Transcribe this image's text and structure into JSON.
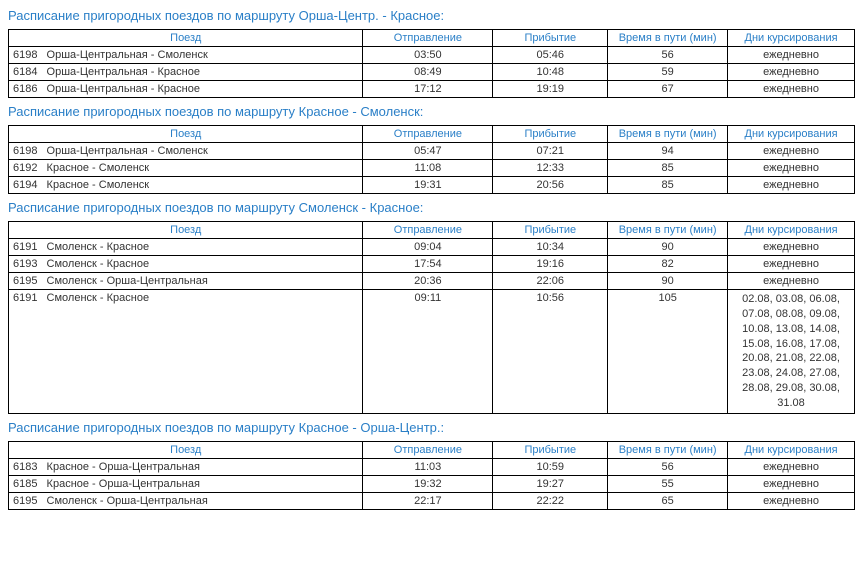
{
  "columns": {
    "train": "Поезд",
    "dep": "Отправление",
    "arr": "Прибытие",
    "dur": "Время в пути (мин)",
    "days": "Дни курсирования"
  },
  "sections": [
    {
      "title": "Расписание пригородных поездов по маршруту Орша-Центр. - Красное:",
      "rows": [
        {
          "num": "6198",
          "name": "Орша-Центральная - Смоленск",
          "dep": "03:50",
          "arr": "05:46",
          "dur": "56",
          "days": "ежедневно"
        },
        {
          "num": "6184",
          "name": "Орша-Центральная - Красное",
          "dep": "08:49",
          "arr": "10:48",
          "dur": "59",
          "days": "ежедневно"
        },
        {
          "num": "6186",
          "name": "Орша-Центральная - Красное",
          "dep": "17:12",
          "arr": "19:19",
          "dur": "67",
          "days": "ежедневно"
        }
      ]
    },
    {
      "title": "Расписание пригородных поездов по маршруту Красное - Смоленск:",
      "rows": [
        {
          "num": "6198",
          "name": "Орша-Центральная - Смоленск",
          "dep": "05:47",
          "arr": "07:21",
          "dur": "94",
          "days": "ежедневно"
        },
        {
          "num": "6192",
          "name": "Красное - Смоленск",
          "dep": "11:08",
          "arr": "12:33",
          "dur": "85",
          "days": "ежедневно"
        },
        {
          "num": "6194",
          "name": "Красное - Смоленск",
          "dep": "19:31",
          "arr": "20:56",
          "dur": "85",
          "days": "ежедневно"
        }
      ]
    },
    {
      "title": "Расписание пригородных поездов по маршруту Смоленск - Красное:",
      "rows": [
        {
          "num": "6191",
          "name": "Смоленск - Красное",
          "dep": "09:04",
          "arr": "10:34",
          "dur": "90",
          "days": "ежедневно"
        },
        {
          "num": "6193",
          "name": "Смоленск - Красное",
          "dep": "17:54",
          "arr": "19:16",
          "dur": "82",
          "days": "ежедневно"
        },
        {
          "num": "6195",
          "name": "Смоленск - Орша-Центральная",
          "dep": "20:36",
          "arr": "22:06",
          "dur": "90",
          "days": "ежедневно"
        },
        {
          "num": "6191",
          "name": "Смоленск - Красное",
          "dep": "09:11",
          "arr": "10:56",
          "dur": "105",
          "days": "02.08, 03.08, 06.08, 07.08, 08.08, 09.08, 10.08, 13.08, 14.08, 15.08, 16.08, 17.08, 20.08, 21.08, 22.08, 23.08, 24.08, 27.08, 28.08, 29.08, 30.08, 31.08"
        }
      ]
    },
    {
      "title": "Расписание пригородных поездов по маршруту Красное - Орша-Центр.:",
      "rows": [
        {
          "num": "6183",
          "name": "Красное - Орша-Центральная",
          "dep": "11:03",
          "arr": "10:59",
          "dur": "56",
          "days": "ежедневно"
        },
        {
          "num": "6185",
          "name": "Красное - Орша-Центральная",
          "dep": "19:32",
          "arr": "19:27",
          "dur": "55",
          "days": "ежедневно"
        },
        {
          "num": "6195",
          "name": "Смоленск - Орша-Центральная",
          "dep": "22:17",
          "arr": "22:22",
          "dur": "65",
          "days": "ежедневно"
        }
      ]
    }
  ]
}
